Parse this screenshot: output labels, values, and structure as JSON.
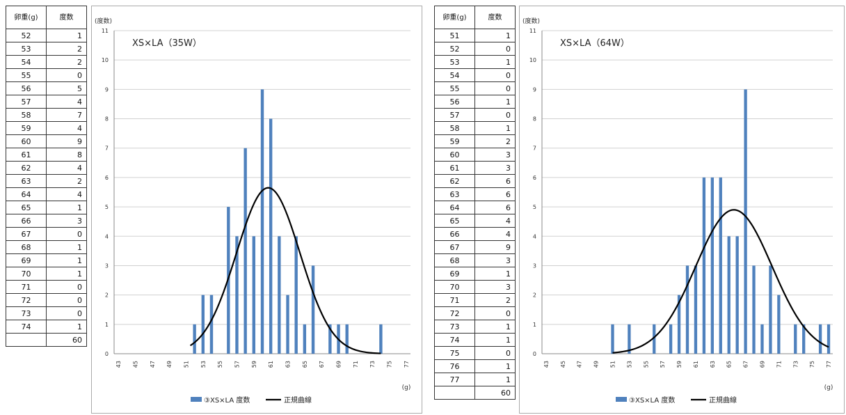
{
  "tables": [
    {
      "col_weight": "卵重(g)",
      "col_freq": "度数",
      "rows": [
        {
          "w": "52",
          "f": "1"
        },
        {
          "w": "53",
          "f": "2"
        },
        {
          "w": "54",
          "f": "2"
        },
        {
          "w": "55",
          "f": "0"
        },
        {
          "w": "56",
          "f": "5"
        },
        {
          "w": "57",
          "f": "4"
        },
        {
          "w": "58",
          "f": "7"
        },
        {
          "w": "59",
          "f": "4"
        },
        {
          "w": "60",
          "f": "9"
        },
        {
          "w": "61",
          "f": "8"
        },
        {
          "w": "62",
          "f": "4"
        },
        {
          "w": "63",
          "f": "2"
        },
        {
          "w": "64",
          "f": "4"
        },
        {
          "w": "65",
          "f": "1"
        },
        {
          "w": "66",
          "f": "3"
        },
        {
          "w": "67",
          "f": "0"
        },
        {
          "w": "68",
          "f": "1"
        },
        {
          "w": "69",
          "f": "1"
        },
        {
          "w": "70",
          "f": "1"
        },
        {
          "w": "71",
          "f": "0"
        },
        {
          "w": "72",
          "f": "0"
        },
        {
          "w": "73",
          "f": "0"
        },
        {
          "w": "74",
          "f": "1"
        }
      ],
      "total": "60"
    },
    {
      "col_weight": "卵重(g)",
      "col_freq": "度数",
      "rows": [
        {
          "w": "51",
          "f": "1"
        },
        {
          "w": "52",
          "f": "0"
        },
        {
          "w": "53",
          "f": "1"
        },
        {
          "w": "54",
          "f": "0"
        },
        {
          "w": "55",
          "f": "0"
        },
        {
          "w": "56",
          "f": "1"
        },
        {
          "w": "57",
          "f": "0"
        },
        {
          "w": "58",
          "f": "1"
        },
        {
          "w": "59",
          "f": "2"
        },
        {
          "w": "60",
          "f": "3"
        },
        {
          "w": "61",
          "f": "3"
        },
        {
          "w": "62",
          "f": "6"
        },
        {
          "w": "63",
          "f": "6"
        },
        {
          "w": "64",
          "f": "6"
        },
        {
          "w": "65",
          "f": "4"
        },
        {
          "w": "66",
          "f": "4"
        },
        {
          "w": "67",
          "f": "9"
        },
        {
          "w": "68",
          "f": "3"
        },
        {
          "w": "69",
          "f": "1"
        },
        {
          "w": "70",
          "f": "3"
        },
        {
          "w": "71",
          "f": "2"
        },
        {
          "w": "72",
          "f": "0"
        },
        {
          "w": "73",
          "f": "1"
        },
        {
          "w": "74",
          "f": "1"
        },
        {
          "w": "75",
          "f": "0"
        },
        {
          "w": "76",
          "f": "1"
        },
        {
          "w": "77",
          "f": "1"
        }
      ],
      "total": "60"
    }
  ],
  "chart_data": [
    {
      "type": "bar",
      "title": "XS×LA（35W）",
      "ylabel": "(度数)",
      "xlabel": "(g)",
      "ylim": [
        0,
        11
      ],
      "xlim": [
        43,
        77
      ],
      "x_ticks": [
        "43",
        "45",
        "47",
        "49",
        "51",
        "53",
        "55",
        "57",
        "59",
        "61",
        "63",
        "65",
        "67",
        "69",
        "71",
        "73",
        "75",
        "77"
      ],
      "y_ticks": [
        "0",
        "1",
        "2",
        "3",
        "4",
        "5",
        "6",
        "7",
        "8",
        "9",
        "10",
        "11"
      ],
      "grid": true,
      "legend_position": "bottom",
      "x": [
        52,
        53,
        54,
        55,
        56,
        57,
        58,
        59,
        60,
        61,
        62,
        63,
        64,
        65,
        66,
        67,
        68,
        69,
        70,
        71,
        72,
        73,
        74
      ],
      "series": [
        {
          "name": "③XS×LA 度数",
          "kind": "bar",
          "color": "#4f81bd",
          "values": [
            1,
            2,
            2,
            0,
            5,
            4,
            7,
            4,
            9,
            8,
            4,
            2,
            4,
            1,
            3,
            0,
            1,
            1,
            1,
            0,
            0,
            0,
            1
          ]
        },
        {
          "name": "正規曲線",
          "kind": "line",
          "color": "#000000",
          "curve": {
            "x_range": [
              51.5,
              74
            ],
            "mean": 60.7,
            "sd": 3.75,
            "peak": 5.65
          }
        }
      ]
    },
    {
      "type": "bar",
      "title": "XS×LA（64W）",
      "ylabel": "(度数)",
      "xlabel": "(g)",
      "ylim": [
        0,
        11
      ],
      "xlim": [
        43,
        77
      ],
      "x_ticks": [
        "43",
        "45",
        "47",
        "49",
        "51",
        "53",
        "55",
        "57",
        "59",
        "61",
        "63",
        "65",
        "67",
        "69",
        "71",
        "73",
        "75",
        "77"
      ],
      "y_ticks": [
        "0",
        "1",
        "2",
        "3",
        "4",
        "5",
        "6",
        "7",
        "8",
        "9",
        "10",
        "11"
      ],
      "grid": true,
      "legend_position": "bottom",
      "x": [
        51,
        52,
        53,
        54,
        55,
        56,
        57,
        58,
        59,
        60,
        61,
        62,
        63,
        64,
        65,
        66,
        67,
        68,
        69,
        70,
        71,
        72,
        73,
        74,
        75,
        76,
        77
      ],
      "series": [
        {
          "name": "③XS×LA 度数",
          "kind": "bar",
          "color": "#4f81bd",
          "values": [
            1,
            0,
            1,
            0,
            0,
            1,
            0,
            1,
            2,
            3,
            3,
            6,
            6,
            6,
            4,
            4,
            9,
            3,
            1,
            3,
            2,
            0,
            1,
            1,
            0,
            1,
            1
          ]
        },
        {
          "name": "正規曲線",
          "kind": "line",
          "color": "#000000",
          "curve": {
            "x_range": [
              51,
              77
            ],
            "mean": 65.6,
            "sd": 4.6,
            "peak": 4.9
          }
        }
      ]
    }
  ]
}
